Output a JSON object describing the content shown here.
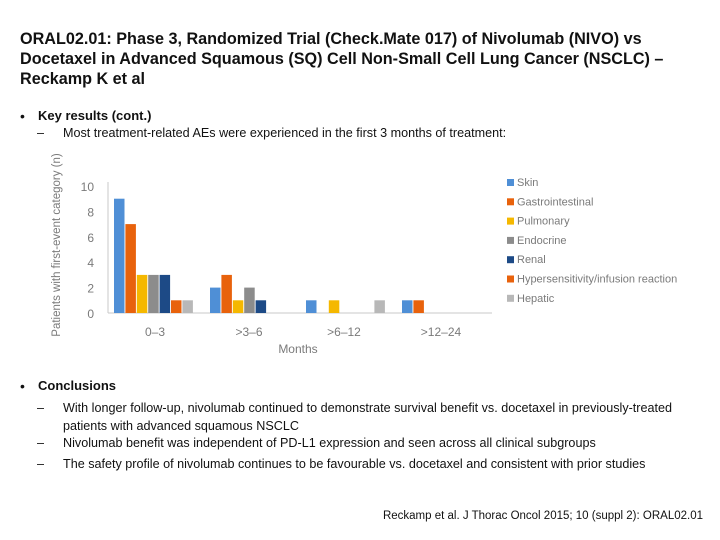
{
  "slide": {
    "title": "ORAL02.01: Phase 3, Randomized Trial (Check.Mate 017) of Nivolumab (NIVO) vs Docetaxel in Advanced Squamous (SQ) Cell Non-Small Cell Lung Cancer (NSCLC) – Reckamp K et al",
    "bullet1": "Key results (cont.)",
    "bullet1_sub": "Most treatment-related AEs were experienced in the first 3 months of treatment:",
    "bullet2": "Conclusions",
    "conclusions": [
      "With longer follow-up, nivolumab continued to demonstrate survival benefit vs. docetaxel in previously-treated patients with advanced squamous NSCLC",
      "Nivolumab benefit was independent of PD-L1 expression and seen across all clinical subgroups",
      "The safety profile of nivolumab continues to be favourable vs. docetaxel and consistent with prior studies"
    ],
    "dash": "–",
    "bullet_symbol": "•",
    "citation": "Reckamp et al. J Thorac Oncol 2015; 10 (suppl 2): ORAL02.01"
  },
  "chart_data": {
    "type": "bar",
    "categories": [
      "0–3",
      ">3–6",
      ">6–12",
      ">12–24"
    ],
    "xlabel": "Months",
    "ylabel": "Patients with first-event category (n)",
    "ylim": [
      0,
      10
    ],
    "yticks": [
      "0",
      "2",
      "4",
      "6",
      "8",
      "10"
    ],
    "legend_position": "right",
    "grid": false,
    "series": [
      {
        "name": "Skin",
        "color": "#4f8fd6",
        "values": [
          9,
          2,
          1,
          1
        ]
      },
      {
        "name": "Gastrointestinal",
        "color": "#e8620c",
        "values": [
          7,
          3,
          0,
          1
        ]
      },
      {
        "name": "Pulmonary",
        "color": "#f5b800",
        "values": [
          3,
          1,
          1,
          0
        ]
      },
      {
        "name": "Endocrine",
        "color": "#8c8c8c",
        "values": [
          3,
          2,
          0,
          0
        ]
      },
      {
        "name": "Renal",
        "color": "#1d4a86",
        "values": [
          3,
          1,
          0,
          0
        ]
      },
      {
        "name": "Hypersensitivity/infusion reaction",
        "color": "#e8620c",
        "values": [
          1,
          0,
          0,
          0
        ]
      },
      {
        "name": "Hepatic",
        "color": "#b8b8b8",
        "values": [
          1,
          0,
          1,
          0
        ]
      }
    ]
  }
}
